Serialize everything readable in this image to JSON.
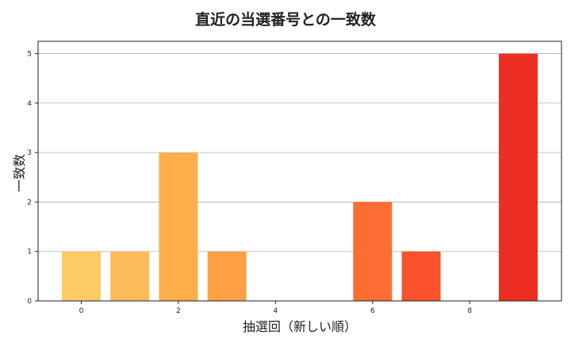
{
  "chart_data": {
    "type": "bar",
    "title": "直近の当選番号との一致数",
    "xlabel": "抽選回（新しい順）",
    "ylabel": "一致数",
    "x": [
      0,
      1,
      2,
      3,
      4,
      5,
      6,
      7,
      8,
      9
    ],
    "values": [
      1,
      1,
      3,
      1,
      0,
      0,
      2,
      1,
      0,
      5
    ],
    "colors": [
      "#FECA66",
      "#FEBB5A",
      "#FDAE4B",
      "#FDA046",
      "#FD8A3D",
      "#FC7A38",
      "#FC6D33",
      "#F9522D",
      "#F2402A",
      "#EC2F22"
    ],
    "xticks": [
      0,
      2,
      4,
      6,
      8
    ],
    "yticks": [
      0,
      1,
      2,
      3,
      4,
      5
    ],
    "xlim": [
      -0.89,
      9.89
    ],
    "ylim": [
      0,
      5.25
    ],
    "grid": "y-axis horizontal lines",
    "legend": "none"
  }
}
